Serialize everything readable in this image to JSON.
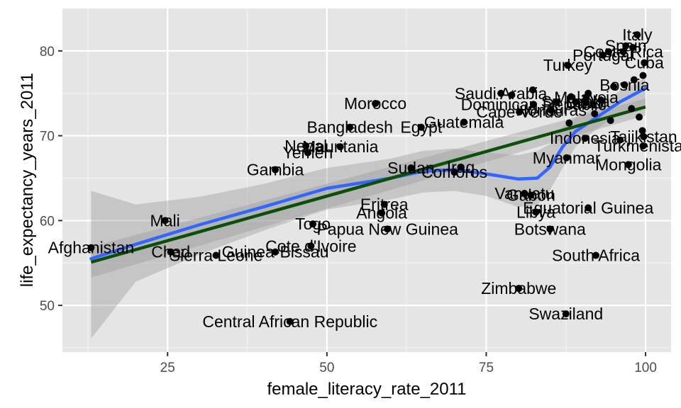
{
  "chart_data": {
    "type": "scatter",
    "title": "",
    "xlabel": "female_literacy_rate_2011",
    "ylabel": "life_expectancy_years_2011",
    "xlim": [
      8.5,
      104
    ],
    "ylim": [
      44.5,
      85
    ],
    "x_ticks": [
      25,
      50,
      75,
      100
    ],
    "y_ticks": [
      50,
      60,
      70,
      80
    ],
    "grid": true,
    "legend": "none",
    "colors": {
      "panel": "#e5e5e5",
      "grid_major": "#ffffff",
      "grid_minor": "#f2f2f2",
      "points": "#000000",
      "loess": "#3366ff",
      "linear": "#0b4f0b",
      "ribbon": "#999999"
    },
    "points": [
      {
        "label": "Afghanistan",
        "x": 13,
        "y": 56.8
      },
      {
        "label": "Mali",
        "x": 24.6,
        "y": 60.0
      },
      {
        "label": "Chad",
        "x": 25.5,
        "y": 56.3
      },
      {
        "label": "Sierra Leone",
        "x": 32.6,
        "y": 55.9
      },
      {
        "label": "Guinea-Bissau",
        "x": 41.9,
        "y": 56.3
      },
      {
        "label": "Gambia",
        "x": 41.9,
        "y": 66.0
      },
      {
        "label": "Cote d'Ivoire",
        "x": 47.5,
        "y": 57.0
      },
      {
        "label": "Central African Republic",
        "x": 44.2,
        "y": 48.1
      },
      {
        "label": "Togo",
        "x": 47.8,
        "y": 59.6
      },
      {
        "label": "Yemen",
        "x": 47.0,
        "y": 68.0
      },
      {
        "label": "Nepal",
        "x": 46.7,
        "y": 68.8
      },
      {
        "label": "Mauritania",
        "x": 52.1,
        "y": 68.7
      },
      {
        "label": "Bangladesh",
        "x": 53.6,
        "y": 71.0
      },
      {
        "label": "Morocco",
        "x": 57.6,
        "y": 73.8
      },
      {
        "label": "Eritrea",
        "x": 59.0,
        "y": 61.9
      },
      {
        "label": "Angola",
        "x": 58.6,
        "y": 60.9
      },
      {
        "label": "Papua New Guinea",
        "x": 59.5,
        "y": 59.0
      },
      {
        "label": "Sudan",
        "x": 63.2,
        "y": 66.2
      },
      {
        "label": "Egypt",
        "x": 64.8,
        "y": 71.0
      },
      {
        "label": "Comoros",
        "x": 70.0,
        "y": 65.7
      },
      {
        "label": "Iraq",
        "x": 71.0,
        "y": 66.3
      },
      {
        "label": "Guatemala",
        "x": 71.5,
        "y": 71.6
      },
      {
        "label": "Saudi Arabia",
        "x": 77.3,
        "y": 75.0
      },
      {
        "label": "Cape Verde",
        "x": 80.2,
        "y": 72.8
      },
      {
        "label": "Zimbabwe",
        "x": 80.1,
        "y": 52.0
      },
      {
        "label": "Vanuatu",
        "x": 81.0,
        "y": 63.2
      },
      {
        "label": "Gabon",
        "x": 82.0,
        "y": 63.0
      },
      {
        "label": "Libya",
        "x": 82.8,
        "y": 61.0
      },
      {
        "label": "Equatorial Guinea",
        "x": 91.0,
        "y": 61.5
      },
      {
        "label": "Botswana",
        "x": 85.0,
        "y": 59.0
      },
      {
        "label": "Swaziland",
        "x": 87.5,
        "y": 49.0
      },
      {
        "label": "South Africa",
        "x": 92.2,
        "y": 55.9
      },
      {
        "label": "Myanmar",
        "x": 87.6,
        "y": 67.4
      },
      {
        "label": "Mongolia",
        "x": 97.3,
        "y": 66.6
      },
      {
        "label": "Turkmenistan",
        "x": 99.6,
        "y": 68.8
      },
      {
        "label": "Indonesia",
        "x": 90.5,
        "y": 69.7
      },
      {
        "label": "Tajikistan",
        "x": 99.7,
        "y": 69.9
      },
      {
        "label": "Honduras",
        "x": 85.2,
        "y": 73.0
      },
      {
        "label": "Dominican Republic",
        "x": 82.4,
        "y": 73.7
      },
      {
        "label": "Sri Lanka",
        "x": 89.0,
        "y": 74.0
      },
      {
        "label": "Bosnia",
        "x": 96.7,
        "y": 76.0
      },
      {
        "label": "Brazil",
        "x": 90.7,
        "y": 73.9
      },
      {
        "label": "Malaysia",
        "x": 90.7,
        "y": 74.5
      },
      {
        "label": "Turkey",
        "x": 87.8,
        "y": 78.3
      },
      {
        "label": "Cuba",
        "x": 99.8,
        "y": 78.6
      },
      {
        "label": "Portugal",
        "x": 93.3,
        "y": 79.5
      },
      {
        "label": "Costa Rica",
        "x": 96.5,
        "y": 79.9
      },
      {
        "label": "Spain",
        "x": 96.9,
        "y": 80.6
      },
      {
        "label": "Italy",
        "x": 98.7,
        "y": 81.9
      },
      {
        "label": "",
        "x": 79.0,
        "y": 74.8
      },
      {
        "label": "",
        "x": 82.3,
        "y": 75.4
      },
      {
        "label": "",
        "x": 86.0,
        "y": 74.0
      },
      {
        "label": "",
        "x": 88.3,
        "y": 74.6
      },
      {
        "label": "",
        "x": 91.0,
        "y": 75.0
      },
      {
        "label": "",
        "x": 93.0,
        "y": 74.2
      },
      {
        "label": "",
        "x": 95.0,
        "y": 75.8
      },
      {
        "label": "",
        "x": 97.8,
        "y": 73.2
      },
      {
        "label": "",
        "x": 99.0,
        "y": 72.2
      },
      {
        "label": "",
        "x": 99.5,
        "y": 70.6
      },
      {
        "label": "",
        "x": 98.2,
        "y": 76.6
      },
      {
        "label": "",
        "x": 99.6,
        "y": 77.1
      },
      {
        "label": "",
        "x": 94.2,
        "y": 79.9
      },
      {
        "label": "",
        "x": 98.0,
        "y": 80.4
      },
      {
        "label": "",
        "x": 92.0,
        "y": 72.6
      },
      {
        "label": "",
        "x": 88.0,
        "y": 71.5
      },
      {
        "label": "",
        "x": 94.5,
        "y": 71.8
      },
      {
        "label": "",
        "x": 96.0,
        "y": 69.5
      }
    ],
    "linear_fit": {
      "x": [
        13,
        100
      ],
      "y": [
        55.1,
        73.4
      ]
    },
    "linear_ci": {
      "lower": [
        53.3,
        72.4
      ],
      "upper": [
        56.9,
        74.4
      ]
    },
    "loess": {
      "x": [
        13,
        20,
        30,
        40,
        50,
        60,
        65,
        70,
        75,
        80,
        83,
        85,
        87,
        89,
        92,
        96,
        100
      ],
      "y": [
        55.5,
        57.2,
        59.5,
        61.6,
        63.8,
        65.0,
        65.8,
        66.0,
        65.5,
        64.9,
        65.0,
        66.3,
        68.7,
        70.5,
        72.0,
        74.0,
        75.6
      ],
      "lower": [
        46.1,
        52.8,
        56.0,
        58.8,
        61.3,
        62.5,
        63.3,
        63.5,
        62.9,
        61.6,
        61.8,
        63.6,
        66.2,
        68.7,
        70.6,
        72.7,
        73.7
      ],
      "upper": [
        63.5,
        61.9,
        62.8,
        64.3,
        66.2,
        67.3,
        68.2,
        68.5,
        68.0,
        67.7,
        68.2,
        69.0,
        71.1,
        72.1,
        73.3,
        75.3,
        76.8
      ]
    }
  }
}
